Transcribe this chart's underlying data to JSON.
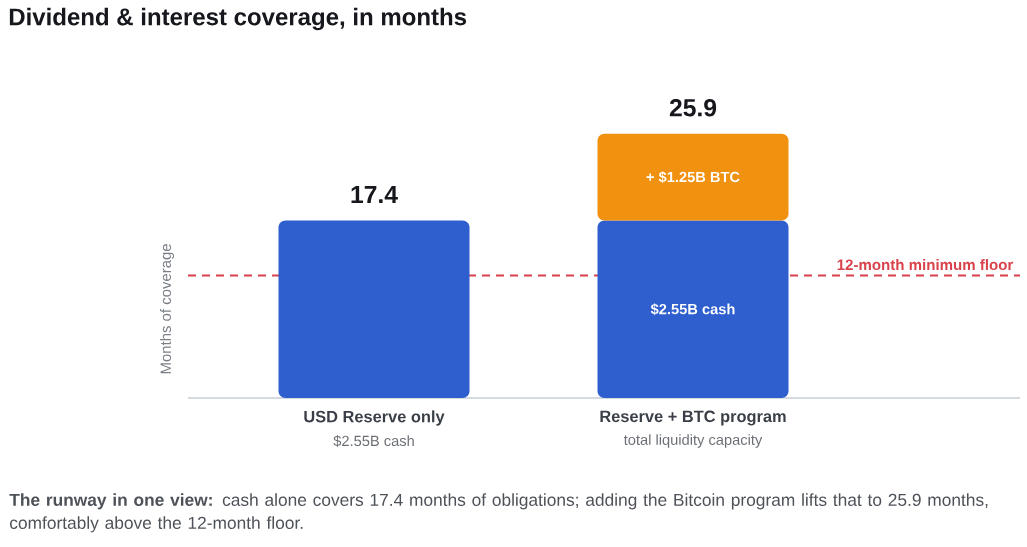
{
  "chart_data": {
    "type": "bar",
    "title": "Dividend & interest coverage, in months",
    "ylabel": "Months of coverage",
    "categories": [
      "USD Reserve only",
      "Reserve + BTC program"
    ],
    "stacked": true,
    "series": [
      {
        "name": "$2.55B cash",
        "color": "#2f5fcf",
        "values": [
          17.4,
          17.4
        ],
        "value_labels": [
          "17.4",
          null
        ]
      },
      {
        "name": "+ $1.25B BTC",
        "color": "#f0910f",
        "values": [
          null,
          8.5
        ]
      }
    ],
    "totals": [
      null,
      "25.9"
    ],
    "ref_lines": [
      {
        "axis": "y",
        "value": 12,
        "label": "12-month minimum floor",
        "color": "#d9414b",
        "line_style": "dashed"
      }
    ],
    "annotations": [
      "$2.55B cash",
      "total liquidity capacity",
      "**The runway in one view:** cash alone covers 17.4 months of obligations; adding the Bitcoin program lifts that to 25.9 months, comfortably above the 12-month floor."
    ]
  }
}
